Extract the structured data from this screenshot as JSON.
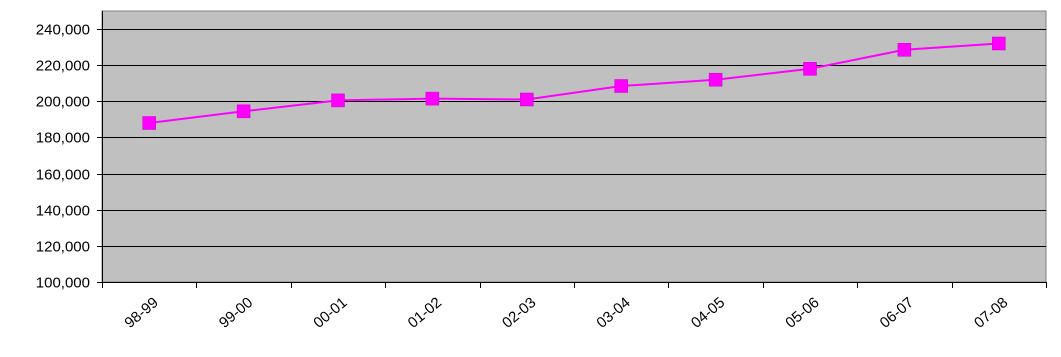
{
  "chart_data": {
    "type": "line",
    "title": "",
    "xlabel": "",
    "ylabel": "",
    "categories": [
      "98-99",
      "99-00",
      "00-01",
      "01-02",
      "02-03",
      "03-04",
      "04-05",
      "05-06",
      "06-07",
      "07-08"
    ],
    "series": [
      {
        "values": [
          188000,
          194500,
          200500,
          201500,
          201000,
          208500,
          212000,
          218000,
          228500,
          232000
        ]
      }
    ],
    "ylim": [
      100000,
      250000
    ],
    "yticks": [
      100000,
      120000,
      140000,
      160000,
      180000,
      200000,
      220000,
      240000
    ],
    "ytick_labels": [
      "100,000",
      "120,000",
      "140,000",
      "160,000",
      "180,000",
      "200,000",
      "220,000",
      "240,000"
    ],
    "grid": "horizontal",
    "legend": "none",
    "colors": {
      "plot_background": "#c0c0c0",
      "series_line": "#ff00ff",
      "series_marker": "#ff00ff",
      "gridline": "#000000",
      "axis": "#000000"
    },
    "marker": "square"
  }
}
